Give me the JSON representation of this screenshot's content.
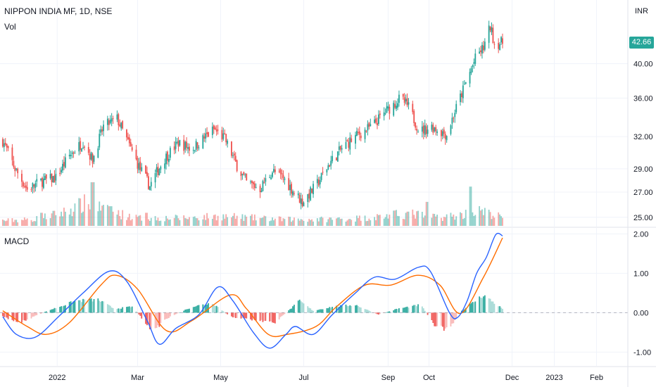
{
  "legend": {
    "title": "NIPPON INDIA MF, 1D, NSE",
    "volume": "Vol",
    "macd": "MACD"
  },
  "currency": "INR",
  "last_price": "42.66",
  "colors": {
    "up": "#26a69a",
    "down": "#ef5350",
    "macd": "#2962ff",
    "signal": "#ff6d00",
    "hist_up": "#26a69a",
    "hist_down": "#ef5350",
    "grid": "#e0e3eb",
    "badge": "#26a69a"
  },
  "chart_data": [
    {
      "type": "candlestick",
      "title": "NIPPON INDIA MF, 1D, NSE",
      "y_ticks": [
        "25.00",
        "27.00",
        "29.00",
        "32.00",
        "36.00",
        "40.00"
      ],
      "ylim": [
        24.3,
        48.6
      ],
      "scale": "log",
      "x_ticks": [
        "2022",
        "Mar",
        "May",
        "Jul",
        "Sep",
        "Oct",
        "Dec",
        "2023",
        "Feb"
      ],
      "x_tick_dates": [
        "2022-01-01",
        "2022-03-01",
        "2022-05-01",
        "2022-07-01",
        "2022-09-01",
        "2022-10-01",
        "2022-12-01",
        "2023-01-01",
        "2023-02-01"
      ],
      "x_range": [
        "2021-11-20",
        "2023-02-24"
      ],
      "close_path": [
        [
          "2021-11-22",
          31.6
        ],
        [
          "2021-12-01",
          29.0
        ],
        [
          "2021-12-10",
          27.2
        ],
        [
          "2021-12-20",
          27.9
        ],
        [
          "2021-12-31",
          28.2
        ],
        [
          "2022-01-10",
          30.2
        ],
        [
          "2022-01-20",
          31.5
        ],
        [
          "2022-01-27",
          29.8
        ],
        [
          "2022-02-04",
          33.0
        ],
        [
          "2022-02-14",
          33.8
        ],
        [
          "2022-02-22",
          31.4
        ],
        [
          "2022-03-02",
          29.2
        ],
        [
          "2022-03-10",
          27.5
        ],
        [
          "2022-03-20",
          29.8
        ],
        [
          "2022-03-31",
          31.4
        ],
        [
          "2022-04-10",
          30.8
        ],
        [
          "2022-04-20",
          32.0
        ],
        [
          "2022-04-26",
          32.7
        ],
        [
          "2022-05-04",
          31.8
        ],
        [
          "2022-05-12",
          29.5
        ],
        [
          "2022-05-20",
          27.8
        ],
        [
          "2022-05-30",
          27.3
        ],
        [
          "2022-06-08",
          28.8
        ],
        [
          "2022-06-16",
          28.2
        ],
        [
          "2022-06-24",
          27.0
        ],
        [
          "2022-06-30",
          26.2
        ],
        [
          "2022-07-10",
          27.5
        ],
        [
          "2022-07-20",
          29.5
        ],
        [
          "2022-07-30",
          31.0
        ],
        [
          "2022-08-10",
          32.2
        ],
        [
          "2022-08-20",
          33.0
        ],
        [
          "2022-08-30",
          34.5
        ],
        [
          "2022-09-10",
          36.0
        ],
        [
          "2022-09-16",
          35.0
        ],
        [
          "2022-09-24",
          32.5
        ],
        [
          "2022-10-03",
          33.0
        ],
        [
          "2022-10-14",
          32.2
        ],
        [
          "2022-10-25",
          36.5
        ],
        [
          "2022-11-05",
          41.0
        ],
        [
          "2022-11-10",
          42.0
        ],
        [
          "2022-11-15",
          44.8
        ],
        [
          "2022-11-18",
          42.5
        ],
        [
          "2022-11-24",
          42.66
        ]
      ],
      "volume_path": [
        [
          "2021-11-22",
          0.12
        ],
        [
          "2021-12-15",
          0.15
        ],
        [
          "2022-01-05",
          0.3
        ],
        [
          "2022-01-25",
          0.55
        ],
        [
          "2022-02-05",
          0.35
        ],
        [
          "2022-03-01",
          0.18
        ],
        [
          "2022-04-01",
          0.18
        ],
        [
          "2022-05-01",
          0.22
        ],
        [
          "2022-06-15",
          0.15
        ],
        [
          "2022-07-15",
          0.15
        ],
        [
          "2022-08-15",
          0.18
        ],
        [
          "2022-09-15",
          0.28
        ],
        [
          "2022-10-10",
          0.2
        ],
        [
          "2022-10-25",
          0.25
        ],
        [
          "2022-11-05",
          0.35
        ],
        [
          "2022-11-24",
          0.2
        ]
      ],
      "volume_spikes": [
        [
          "2021-12-20",
          0.3
        ],
        [
          "2022-01-27",
          1.0
        ],
        [
          "2022-02-09",
          0.45
        ],
        [
          "2022-03-07",
          0.3
        ],
        [
          "2022-09-30",
          0.55
        ],
        [
          "2022-10-31",
          0.9
        ]
      ]
    },
    {
      "type": "line",
      "title": "MACD",
      "y_ticks": [
        "-1.00",
        "0.00",
        "1.00",
        "2.00"
      ],
      "ylim": [
        -1.35,
        2.15
      ],
      "series": [
        {
          "name": "MACD",
          "points": [
            [
              "2021-11-22",
              -0.1
            ],
            [
              "2021-12-02",
              -0.55
            ],
            [
              "2021-12-16",
              -0.62
            ],
            [
              "2022-01-02",
              -0.1
            ],
            [
              "2022-01-20",
              0.5
            ],
            [
              "2022-02-08",
              1.05
            ],
            [
              "2022-02-21",
              0.8
            ],
            [
              "2022-03-08",
              -0.2
            ],
            [
              "2022-03-17",
              -0.8
            ],
            [
              "2022-03-29",
              -0.4
            ],
            [
              "2022-04-15",
              -0.05
            ],
            [
              "2022-04-29",
              0.65
            ],
            [
              "2022-05-10",
              0.3
            ],
            [
              "2022-05-25",
              -0.5
            ],
            [
              "2022-06-06",
              -0.9
            ],
            [
              "2022-06-18",
              -0.55
            ],
            [
              "2022-06-25",
              -0.35
            ],
            [
              "2022-07-08",
              -0.55
            ],
            [
              "2022-07-22",
              -0.05
            ],
            [
              "2022-08-08",
              0.5
            ],
            [
              "2022-08-22",
              0.9
            ],
            [
              "2022-09-06",
              0.85
            ],
            [
              "2022-09-23",
              1.15
            ],
            [
              "2022-10-02",
              1.05
            ],
            [
              "2022-10-16",
              0.0
            ],
            [
              "2022-10-22",
              -0.12
            ],
            [
              "2022-10-29",
              0.3
            ],
            [
              "2022-11-05",
              1.0
            ],
            [
              "2022-11-12",
              1.4
            ],
            [
              "2022-11-19",
              1.98
            ],
            [
              "2022-11-24",
              1.95
            ]
          ]
        },
        {
          "name": "Signal",
          "points": [
            [
              "2021-11-22",
              0.05
            ],
            [
              "2021-12-10",
              -0.35
            ],
            [
              "2021-12-24",
              -0.55
            ],
            [
              "2022-01-10",
              -0.25
            ],
            [
              "2022-02-02",
              0.7
            ],
            [
              "2022-02-13",
              0.95
            ],
            [
              "2022-03-01",
              0.6
            ],
            [
              "2022-03-22",
              -0.45
            ],
            [
              "2022-04-10",
              -0.2
            ],
            [
              "2022-05-08",
              0.45
            ],
            [
              "2022-05-20",
              0.1
            ],
            [
              "2022-06-05",
              -0.55
            ],
            [
              "2022-06-19",
              -0.55
            ],
            [
              "2022-07-10",
              -0.35
            ],
            [
              "2022-07-25",
              0.15
            ],
            [
              "2022-08-15",
              0.7
            ],
            [
              "2022-09-03",
              0.7
            ],
            [
              "2022-09-23",
              0.95
            ],
            [
              "2022-10-09",
              0.7
            ],
            [
              "2022-10-24",
              -0.02
            ],
            [
              "2022-11-10",
              0.9
            ],
            [
              "2022-11-24",
              1.9
            ]
          ]
        }
      ],
      "histogram_path": [
        [
          "2021-11-22",
          -0.1
        ],
        [
          "2021-12-05",
          -0.25
        ],
        [
          "2021-12-25",
          0.05
        ],
        [
          "2022-01-15",
          0.3
        ],
        [
          "2022-01-31",
          0.33
        ],
        [
          "2022-02-12",
          0.1
        ],
        [
          "2022-02-25",
          0.15
        ],
        [
          "2022-03-12",
          -0.45
        ],
        [
          "2022-03-25",
          -0.1
        ],
        [
          "2022-04-10",
          0.15
        ],
        [
          "2022-04-25",
          0.25
        ],
        [
          "2022-05-08",
          -0.1
        ],
        [
          "2022-05-28",
          -0.2
        ],
        [
          "2022-06-10",
          -0.25
        ],
        [
          "2022-06-28",
          0.3
        ],
        [
          "2022-07-08",
          0.05
        ],
        [
          "2022-07-22",
          0.15
        ],
        [
          "2022-08-08",
          0.2
        ],
        [
          "2022-08-25",
          -0.05
        ],
        [
          "2022-09-08",
          0.1
        ],
        [
          "2022-09-25",
          0.2
        ],
        [
          "2022-10-05",
          -0.3
        ],
        [
          "2022-10-15",
          -0.45
        ],
        [
          "2022-10-25",
          0.05
        ],
        [
          "2022-11-10",
          0.45
        ],
        [
          "2022-11-24",
          0.1
        ]
      ]
    }
  ]
}
